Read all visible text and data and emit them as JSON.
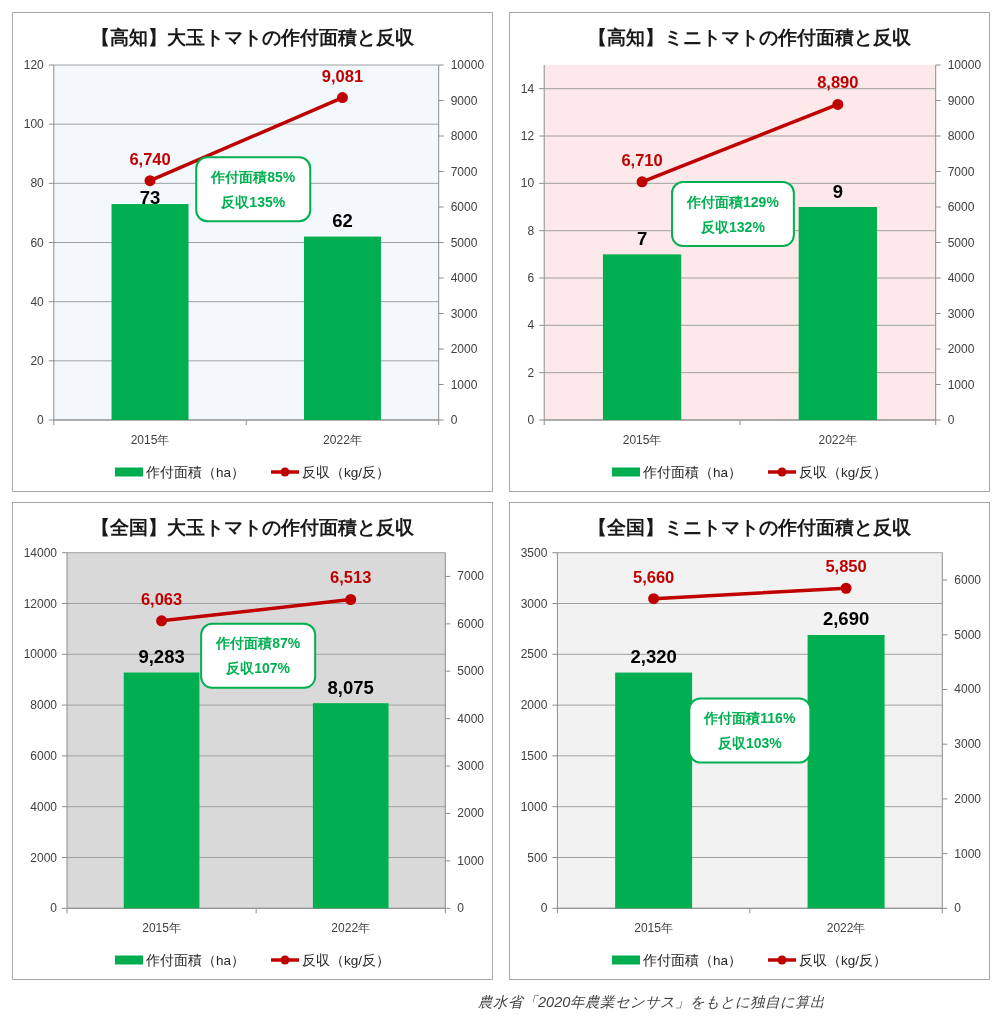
{
  "chart_data": [
    {
      "type": "bar",
      "title": "【高知】大玉トマトの作付面積と反収",
      "categories": [
        "2015年",
        "2022年"
      ],
      "series": [
        {
          "name": "作付面積（ha）",
          "color": "#00b050",
          "values": [
            73,
            62
          ],
          "value_labels": [
            "73",
            "62"
          ]
        },
        {
          "name": "反収（kg/反）",
          "type": "line",
          "axis": "y2",
          "color": "#c00000",
          "marker": "circle",
          "values": [
            6740,
            9081
          ],
          "value_labels": [
            "6,740",
            "9,081"
          ]
        }
      ],
      "ylim": [
        0,
        120
      ],
      "yticks": [
        0,
        20,
        40,
        60,
        80,
        100,
        120
      ],
      "y2lim": [
        0,
        10000
      ],
      "y2ticks": [
        0,
        1000,
        2000,
        3000,
        4000,
        5000,
        6000,
        7000,
        8000,
        9000,
        10000
      ],
      "grid": "y",
      "legend": "bottom",
      "annotations": [
        "作付面積85%",
        "反収135%"
      ]
    },
    {
      "type": "bar",
      "title": "【高知】ミニトマトの作付面積と反収",
      "categories": [
        "2015年",
        "2022年"
      ],
      "series": [
        {
          "name": "作付面積（ha）",
          "color": "#00b050",
          "values": [
            7,
            9
          ],
          "value_labels": [
            "7",
            "9"
          ]
        },
        {
          "name": "反収（kg/反）",
          "type": "line",
          "axis": "y2",
          "color": "#c00000",
          "marker": "circle",
          "values": [
            6710,
            8890
          ],
          "value_labels": [
            "6,710",
            "8,890"
          ]
        }
      ],
      "ylim": [
        0,
        15
      ],
      "yticks": [
        0,
        2,
        4,
        6,
        8,
        10,
        12,
        14
      ],
      "y2lim": [
        0,
        10000
      ],
      "y2ticks": [
        0,
        1000,
        2000,
        3000,
        4000,
        5000,
        6000,
        7000,
        8000,
        9000,
        10000
      ],
      "grid": "y",
      "legend": "bottom",
      "annotations": [
        "作付面積129%",
        "反収132%"
      ]
    },
    {
      "type": "bar",
      "title": "【全国】大玉トマトの作付面積と反収",
      "categories": [
        "2015年",
        "2022年"
      ],
      "series": [
        {
          "name": "作付面積（ha）",
          "color": "#00b050",
          "values": [
            9283,
            8075
          ],
          "value_labels": [
            "9,283",
            "8,075"
          ]
        },
        {
          "name": "反収（kg/反）",
          "type": "line",
          "axis": "y2",
          "color": "#c00000",
          "marker": "circle",
          "values": [
            6063,
            6513
          ],
          "value_labels": [
            "6,063",
            "6,513"
          ]
        }
      ],
      "ylim": [
        0,
        14000
      ],
      "yticks": [
        0,
        2000,
        4000,
        6000,
        8000,
        10000,
        12000,
        14000
      ],
      "y2lim": [
        0,
        7500
      ],
      "y2ticks": [
        0,
        1000,
        2000,
        3000,
        4000,
        5000,
        6000,
        7000
      ],
      "grid": "y",
      "legend": "bottom",
      "annotations": [
        "作付面積87%",
        "反収107%"
      ]
    },
    {
      "type": "bar",
      "title": "【全国】ミニトマトの作付面積と反収",
      "categories": [
        "2015年",
        "2022年"
      ],
      "series": [
        {
          "name": "作付面積（ha）",
          "color": "#00b050",
          "values": [
            2320,
            2690
          ],
          "value_labels": [
            "2,320",
            "2,690"
          ]
        },
        {
          "name": "反収（kg/反）",
          "type": "line",
          "axis": "y2",
          "color": "#c00000",
          "marker": "circle",
          "values": [
            5660,
            5850
          ],
          "value_labels": [
            "5,660",
            "5,850"
          ]
        }
      ],
      "ylim": [
        0,
        3500
      ],
      "yticks": [
        0,
        500,
        1000,
        1500,
        2000,
        2500,
        3000,
        3500
      ],
      "y2lim": [
        0,
        6500
      ],
      "y2ticks": [
        0,
        1000,
        2000,
        3000,
        4000,
        5000,
        6000
      ],
      "grid": "y",
      "legend": "bottom",
      "annotations": [
        "作付面積116%",
        "反収103%",
        "農水省「2020年農業センサス」をもとに独自に算出"
      ]
    }
  ]
}
